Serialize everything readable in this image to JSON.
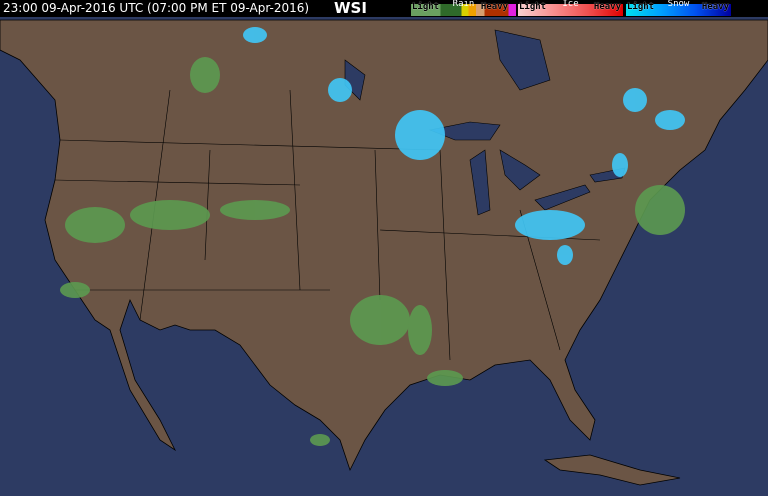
{
  "header": {
    "timestamp": "23:00 09-Apr-2016 UTC  (07:00 PM ET 09-Apr-2016)",
    "logo": "WSI"
  },
  "legend": [
    {
      "title": "Rain",
      "light": "Light",
      "heavy": "Heavy",
      "colors": [
        "#6aa060",
        "#2f6a2a",
        "#d8d000",
        "#f0a000",
        "#d8a070",
        "#b03000",
        "#e020e0"
      ]
    },
    {
      "title": "Ice",
      "light": "Light",
      "heavy": "Heavy",
      "colors": [
        "#f8d0d0",
        "#f89090",
        "#f05050",
        "#e00000"
      ]
    },
    {
      "title": "Snow",
      "light": "Light",
      "heavy": "Heavy",
      "colors": [
        "#00e0f0",
        "#00a0ff",
        "#0050f0",
        "#0000a0"
      ]
    }
  ],
  "colors": {
    "ocean": "#2d3b63",
    "land": "#6b5545",
    "borders": "#000000",
    "radar_light_rain": "#5c9a50",
    "radar_snow": "#40c8f8"
  }
}
